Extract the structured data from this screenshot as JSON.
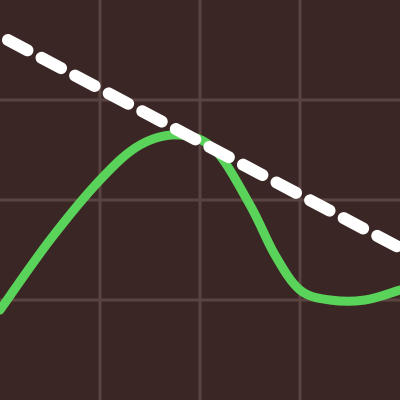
{
  "chart_data": {
    "type": "line",
    "title": "",
    "xlabel": "",
    "ylabel": "",
    "xlim": [
      0,
      4
    ],
    "ylim": [
      0,
      4
    ],
    "grid": true,
    "grid_x": [
      1,
      2,
      3
    ],
    "grid_y": [
      1,
      2,
      3
    ],
    "legend": "none",
    "series": [
      {
        "style": "solid",
        "color": "#5ad35a",
        "x": [
          0,
          0.5,
          1.0,
          1.4,
          1.8,
          2.15,
          2.5,
          2.75,
          3.0,
          3.3,
          3.65,
          4.0
        ],
        "y": [
          0.9,
          1.6,
          2.2,
          2.55,
          2.65,
          2.5,
          1.95,
          1.45,
          1.1,
          1.0,
          1.0,
          1.1
        ]
      },
      {
        "style": "dashed",
        "color": "#ffffff",
        "x": [
          0.08,
          4.0
        ],
        "y": [
          3.6,
          1.52
        ]
      }
    ]
  },
  "colors": {
    "background": "#3a2624",
    "grid": "#5a4441"
  }
}
